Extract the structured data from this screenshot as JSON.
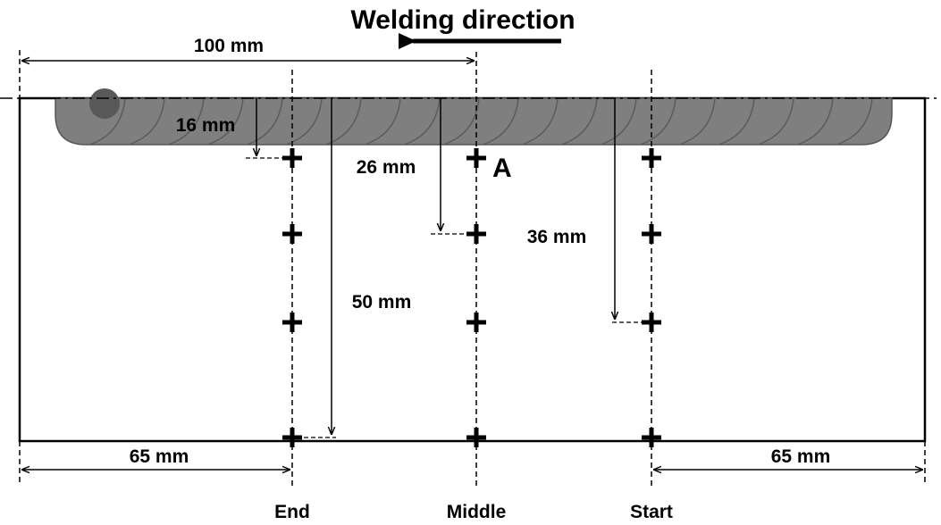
{
  "title": "Welding direction",
  "dimensions": {
    "top_span": "100 mm",
    "depth_1": "16 mm",
    "depth_2": "26 mm",
    "depth_3": "36 mm",
    "depth_4": "50 mm",
    "left_offset": "65 mm",
    "right_offset": "65 mm"
  },
  "point_label": "A",
  "positions": {
    "end": "End",
    "middle": "Middle",
    "start": "Start"
  },
  "colors": {
    "weld_bead": "#7f7f7f",
    "weld_ripple": "#5a5a5a",
    "outline": "#000000"
  }
}
